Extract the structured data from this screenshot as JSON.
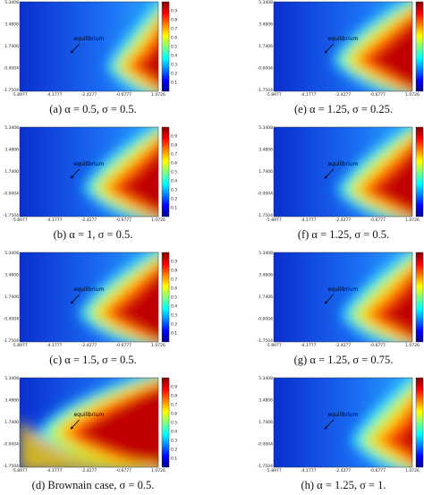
{
  "figure": {
    "x_ticks": [
      "-5.8977",
      "-4.1777",
      "-2.4277",
      "-0.6777",
      "1.0726"
    ],
    "y_ticks": [
      "5.3408",
      "3.4806",
      "1.7406",
      "-0.0004",
      "-1.7504"
    ],
    "colorbar_ticks": [
      "0.9",
      "0.8",
      "0.7",
      "0.6",
      "0.5",
      "0.4",
      "0.3",
      "0.2",
      "0.1"
    ],
    "annotation": "equilibrium",
    "panels": [
      {
        "caption": "(a) α = 0.5, σ = 0.5."
      },
      {
        "caption": "(e) α = 1.25, σ = 0.25."
      },
      {
        "caption": "(b) α = 1, σ = 0.5."
      },
      {
        "caption": "(f) α = 1.25, σ = 0.5."
      },
      {
        "caption": "(c) α = 1.5, σ = 0.5."
      },
      {
        "caption": "(g) α = 1.25, σ = 0.75."
      },
      {
        "caption": "(d) Brownain case, σ = 0.5."
      },
      {
        "caption": "(h) α = 1.25, σ = 1."
      }
    ]
  }
}
